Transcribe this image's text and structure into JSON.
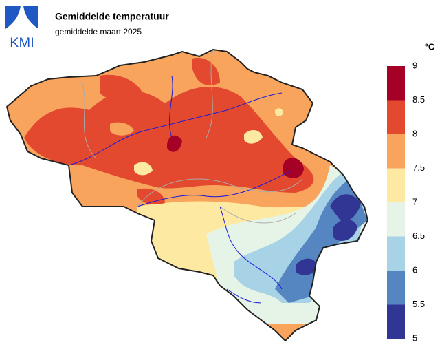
{
  "header": {
    "logo": "KMI",
    "title": "Gemiddelde temperatuur",
    "subtitle": "gemiddelde maart 2025"
  },
  "legend": {
    "unit": "°C",
    "ticks": [
      5,
      5.5,
      6,
      6.5,
      7,
      7.5,
      8,
      8.5,
      9
    ],
    "colors": [
      "#313695",
      "#5686c2",
      "#a8d2e6",
      "#e6f4e8",
      "#fee9a3",
      "#f8a45c",
      "#e2492f",
      "#a50026"
    ]
  }
}
